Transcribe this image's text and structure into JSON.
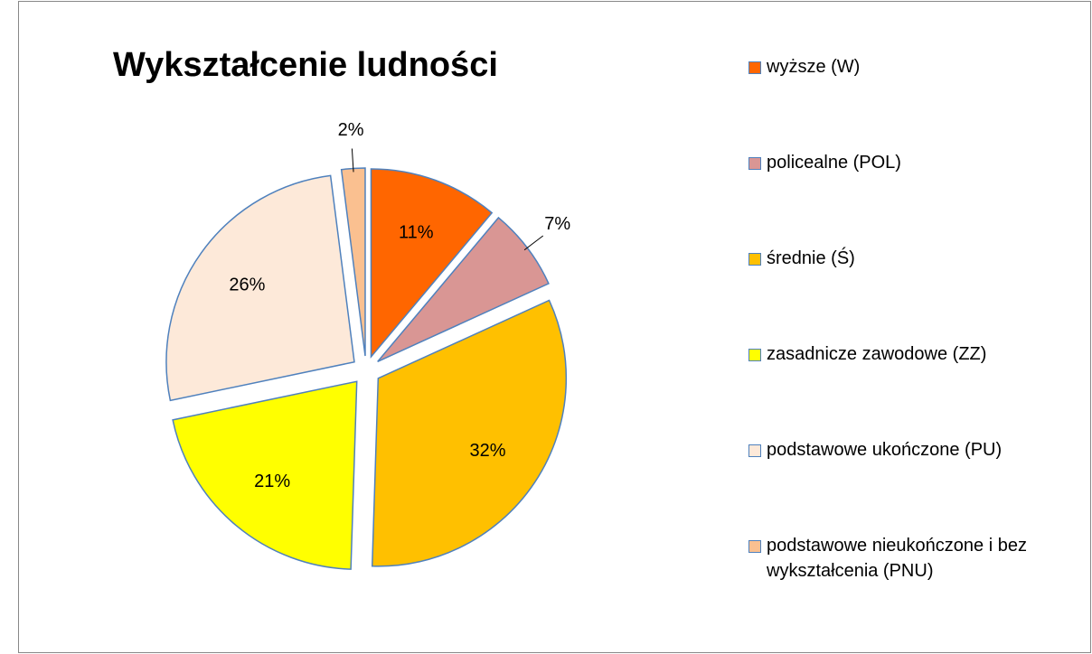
{
  "chart_data": {
    "type": "pie",
    "title": "Wykształcenie ludności",
    "categories": [
      "wyższe (W)",
      "policealne (POL)",
      "średnie (Ś)",
      "zasadnicze zawodowe (ZZ)",
      "podstawowe ukończone (PU)",
      "podstawowe nieukończone i bez wykształcenia (PNU)"
    ],
    "values": [
      11,
      7,
      32,
      21,
      26,
      2
    ],
    "value_labels": [
      "11%",
      "7%",
      "32%",
      "21%",
      "26%",
      "2%"
    ],
    "colors": [
      "#ff6600",
      "#d99694",
      "#ffc000",
      "#ffff00",
      "#fde9d9",
      "#fac090"
    ],
    "legend": "right"
  }
}
